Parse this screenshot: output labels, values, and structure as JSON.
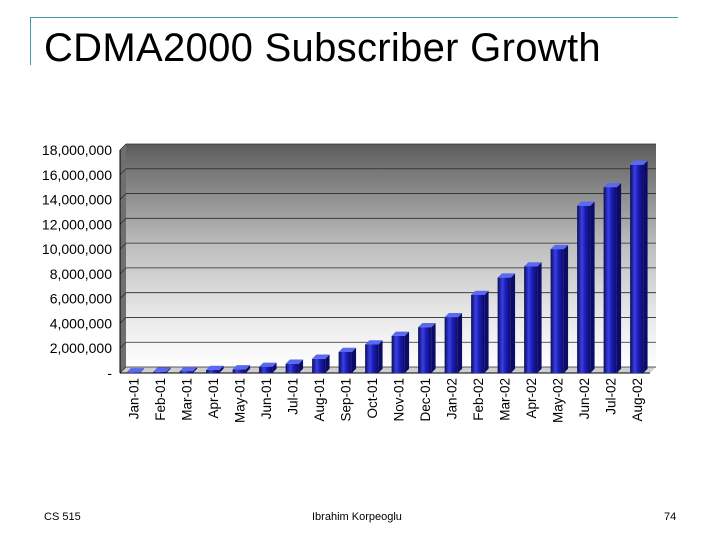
{
  "title": "CDMA2000 Subscriber Growth",
  "footer": {
    "course": "CS 515",
    "author": "Ibrahim Korpeoglu",
    "page": "74"
  },
  "chart_data": {
    "type": "bar",
    "title": "",
    "xlabel": "",
    "ylabel": "",
    "ylim": [
      0,
      18000000
    ],
    "yticks": [
      "-",
      "2,000,000",
      "4,000,000",
      "6,000,000",
      "8,000,000",
      "10,000,000",
      "12,000,000",
      "14,000,000",
      "16,000,000",
      "18,000,000"
    ],
    "grid": true,
    "categories": [
      "Jan-01",
      "Feb-01",
      "Mar-01",
      "Apr-01",
      "May-01",
      "Jun-01",
      "Jul-01",
      "Aug-01",
      "Sep-01",
      "Oct-01",
      "Nov-01",
      "Dec-01",
      "Jan-02",
      "Feb-02",
      "Mar-02",
      "Apr-02",
      "May-02",
      "Jun-02",
      "Jul-02",
      "Aug-02"
    ],
    "values": [
      50000,
      100000,
      150000,
      250000,
      300000,
      500000,
      750000,
      1150000,
      1700000,
      2300000,
      3000000,
      3700000,
      4500000,
      6300000,
      7700000,
      8600000,
      10000000,
      13500000,
      15000000,
      16800000
    ],
    "colors": {
      "bar": "#1a1aa8",
      "bar_light": "#4a50e8",
      "bar_dark": "#0c0c66",
      "top": "#5a6af0"
    }
  }
}
